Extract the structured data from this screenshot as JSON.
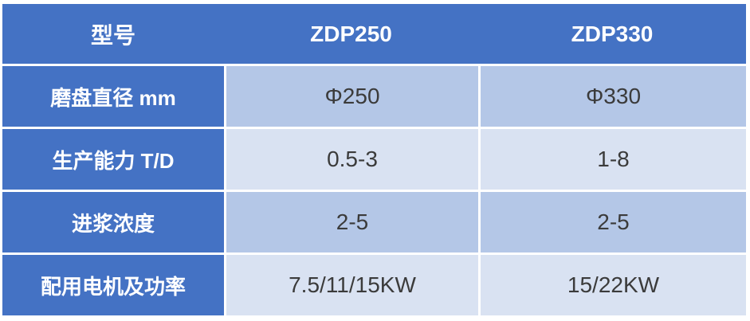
{
  "chart_data": {
    "type": "table",
    "title": "",
    "columns": [
      "型号",
      "ZDP250",
      "ZDP330"
    ],
    "rows": [
      [
        "磨盘直径 mm",
        "Φ250",
        "Φ330"
      ],
      [
        "生产能力 T/D",
        "0.5-3",
        "1-8"
      ],
      [
        "进浆浓度",
        "2-5",
        "2-5"
      ],
      [
        "配用电机及功率",
        "7.5/11/15KW",
        "15/22KW"
      ]
    ],
    "layout": {
      "header_position": "top",
      "label_column": "left",
      "row_banding": [
        "dark",
        "light",
        "dark",
        "light"
      ]
    }
  },
  "colors": {
    "header_bg": "#4472C4",
    "label_column_bg": "#4472C4",
    "band_dark": "#B4C7E7",
    "band_light": "#D9E2F2",
    "header_text": "#FFFFFF",
    "cell_text": "#3B3B3B",
    "divider": "#FFFFFF"
  }
}
